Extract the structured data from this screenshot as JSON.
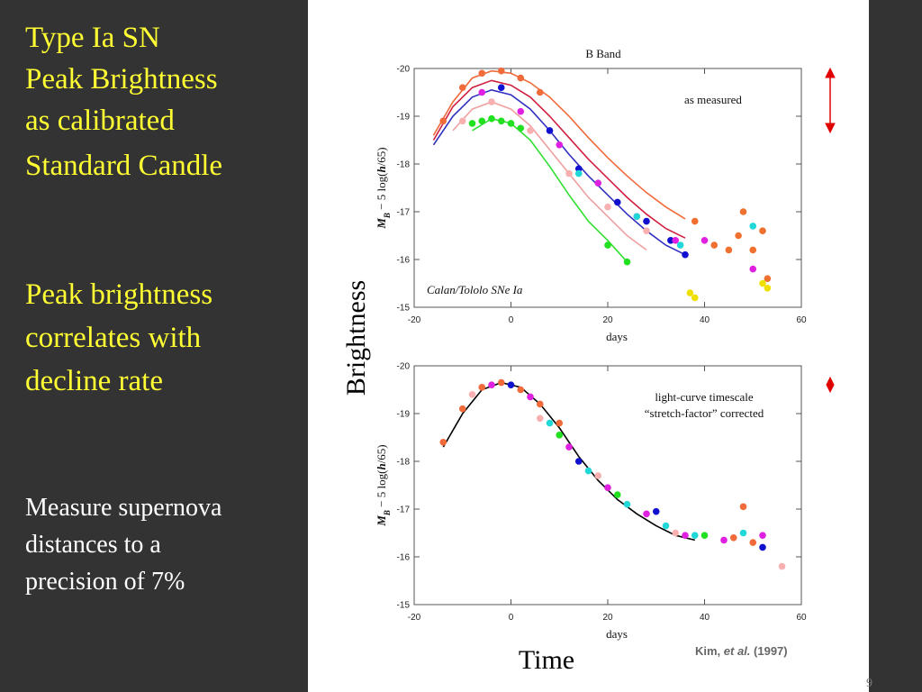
{
  "slide": {
    "heading": [
      "Type Ia SN",
      "Peak Brightness",
      "as calibrated",
      "Standard Candle"
    ],
    "point": [
      "Peak brightness",
      "correlates with",
      "decline rate"
    ],
    "note": [
      "Measure supernova",
      "distances to a",
      "precision of 7%"
    ],
    "y_axis_word": "Brightness",
    "x_axis_word": "Time",
    "credit": [
      "Kim, ",
      "et al.",
      " (1997)"
    ],
    "page_number": "9"
  },
  "chart_data": [
    {
      "type": "line",
      "title": "B Band",
      "annotation": [
        "as measured"
      ],
      "caption": "Calan/Tololo SNe Ia",
      "xlabel": "days",
      "ylabel_parts": [
        "M",
        "B",
        " − 5 log(",
        "h",
        "/65)"
      ],
      "xlim": [
        -20,
        60
      ],
      "xticks": [
        -20,
        0,
        20,
        40,
        60
      ],
      "ylim": [
        -15,
        -20
      ],
      "yticks": [
        -20,
        -19,
        -18,
        -17,
        -16,
        -15
      ],
      "series": [
        {
          "mode": "line",
          "color": "#f06a3a",
          "x": [
            -16,
            -12,
            -8,
            -4,
            0,
            4,
            8,
            12,
            16,
            20,
            24,
            28,
            32,
            36
          ],
          "values": [
            -18.6,
            -19.3,
            -19.8,
            -19.95,
            -19.9,
            -19.7,
            -19.4,
            -19.0,
            -18.55,
            -18.13,
            -17.75,
            -17.4,
            -17.1,
            -16.85
          ]
        },
        {
          "mode": "line",
          "color": "#d02040",
          "x": [
            -16,
            -12,
            -8,
            -4,
            0,
            4,
            8,
            12,
            16,
            20,
            24,
            28,
            32,
            36
          ],
          "values": [
            -18.5,
            -19.2,
            -19.6,
            -19.75,
            -19.65,
            -19.4,
            -19.0,
            -18.55,
            -18.1,
            -17.7,
            -17.3,
            -16.95,
            -16.65,
            -16.45
          ]
        },
        {
          "mode": "line",
          "color": "#3030c0",
          "x": [
            -16,
            -12,
            -8,
            -4,
            0,
            4,
            8,
            12,
            16,
            20,
            24,
            28,
            32,
            36
          ],
          "values": [
            -18.4,
            -19.0,
            -19.4,
            -19.55,
            -19.45,
            -19.15,
            -18.7,
            -18.2,
            -17.75,
            -17.35,
            -16.95,
            -16.6,
            -16.3,
            -16.1
          ]
        },
        {
          "mode": "line",
          "color": "#f0a0a0",
          "x": [
            -16,
            -12,
            -8,
            -4,
            0,
            4,
            8,
            12,
            16,
            20,
            24,
            28,
            32,
            36
          ],
          "values": [
            null,
            -18.7,
            -19.15,
            -19.3,
            -19.15,
            -18.8,
            -18.3,
            -17.8,
            -17.3,
            -16.9,
            -16.5,
            -16.2,
            null,
            null
          ]
        },
        {
          "mode": "line",
          "color": "#30e030",
          "x": [
            -16,
            -12,
            -8,
            -4,
            0,
            4,
            8,
            12,
            16,
            20,
            24,
            28,
            32,
            36
          ],
          "values": [
            null,
            null,
            -18.7,
            -18.95,
            -18.85,
            -18.5,
            -17.95,
            -17.35,
            -16.8,
            -16.4,
            -15.95,
            null,
            null,
            null
          ]
        },
        {
          "mode": "markers",
          "color": "#f07030",
          "x": [
            38,
            42,
            45,
            47,
            48,
            50,
            52,
            53
          ],
          "values": [
            -16.8,
            -16.3,
            -16.2,
            -16.5,
            -17.0,
            -16.2,
            -16.6,
            -15.6
          ]
        },
        {
          "mode": "markers",
          "color": "#f0e000",
          "x": [
            37,
            38,
            52,
            53
          ],
          "values": [
            -15.3,
            -15.2,
            -15.5,
            -15.4
          ]
        },
        {
          "mode": "markers",
          "color": "#1010d0",
          "x": [
            -2,
            8,
            14,
            22,
            28,
            33,
            36
          ],
          "values": [
            -19.6,
            -18.7,
            -17.9,
            -17.2,
            -16.8,
            -16.4,
            -16.1
          ]
        },
        {
          "mode": "markers",
          "color": "#e020e0",
          "x": [
            -6,
            2,
            10,
            18,
            26,
            34,
            40,
            50
          ],
          "values": [
            -19.5,
            -19.1,
            -18.4,
            -17.6,
            -16.9,
            -16.4,
            -16.4,
            -15.8
          ]
        },
        {
          "mode": "markers",
          "color": "#20e020",
          "x": [
            -8,
            -6,
            -4,
            -2,
            0,
            2,
            20,
            24
          ],
          "values": [
            -18.85,
            -18.9,
            -18.95,
            -18.9,
            -18.85,
            -18.75,
            -16.3,
            -15.95
          ]
        },
        {
          "mode": "markers",
          "color": "#f8b0b0",
          "x": [
            -10,
            -4,
            4,
            12,
            20,
            28
          ],
          "values": [
            -18.9,
            -19.3,
            -18.7,
            -17.8,
            -17.1,
            -16.6
          ]
        },
        {
          "mode": "markers",
          "color": "#20d8d8",
          "x": [
            14,
            26,
            35,
            50
          ],
          "values": [
            -17.8,
            -16.9,
            -16.3,
            -16.7
          ]
        },
        {
          "mode": "markers",
          "color": "#f06a3a",
          "x": [
            -14,
            -10,
            -6,
            -2,
            2,
            6
          ],
          "values": [
            -18.9,
            -19.6,
            -19.9,
            -19.95,
            -19.8,
            -19.5
          ]
        }
      ]
    },
    {
      "type": "line",
      "annotation": [
        "light-curve timescale",
        "“stretch-factor” corrected"
      ],
      "xlabel": "days",
      "ylabel_parts": [
        "M",
        "B",
        " − 5 log(",
        "h",
        "/65)"
      ],
      "xlim": [
        -20,
        60
      ],
      "xticks": [
        -20,
        0,
        20,
        40,
        60
      ],
      "ylim": [
        -15,
        -20
      ],
      "yticks": [
        -20,
        -19,
        -18,
        -17,
        -16,
        -15
      ],
      "series": [
        {
          "mode": "line",
          "color": "#000000",
          "x": [
            -14,
            -10,
            -6,
            -2,
            2,
            6,
            10,
            14,
            18,
            22,
            26,
            30,
            34,
            38
          ],
          "values": [
            -18.3,
            -19.0,
            -19.5,
            -19.65,
            -19.55,
            -19.2,
            -18.7,
            -18.1,
            -17.6,
            -17.2,
            -16.9,
            -16.65,
            -16.45,
            -16.35
          ]
        },
        {
          "mode": "markers",
          "color": "#f06a3a",
          "x": [
            -14,
            -10,
            -6,
            -2,
            2,
            6,
            10,
            46,
            48,
            50
          ],
          "values": [
            -18.4,
            -19.1,
            -19.55,
            -19.65,
            -19.5,
            -19.2,
            -18.8,
            -16.4,
            -17.05,
            -16.3
          ]
        },
        {
          "mode": "markers",
          "color": "#e020e0",
          "x": [
            -4,
            4,
            12,
            20,
            28,
            36,
            44,
            52
          ],
          "values": [
            -19.6,
            -19.35,
            -18.3,
            -17.45,
            -16.9,
            -16.45,
            -16.35,
            -16.45
          ]
        },
        {
          "mode": "markers",
          "color": "#20d8d8",
          "x": [
            8,
            16,
            24,
            32,
            38,
            48
          ],
          "values": [
            -18.8,
            -17.8,
            -17.1,
            -16.65,
            -16.45,
            -16.5
          ]
        },
        {
          "mode": "markers",
          "color": "#1010d0",
          "x": [
            0,
            14,
            30,
            52
          ],
          "values": [
            -19.6,
            -18.0,
            -16.95,
            -16.2
          ]
        },
        {
          "mode": "markers",
          "color": "#f8b0b0",
          "x": [
            -8,
            6,
            18,
            34,
            56
          ],
          "values": [
            -19.4,
            -18.9,
            -17.7,
            -16.5,
            -15.8
          ]
        },
        {
          "mode": "markers",
          "color": "#20e020",
          "x": [
            10,
            22,
            40
          ],
          "values": [
            -18.55,
            -17.3,
            -16.45
          ]
        }
      ]
    }
  ]
}
